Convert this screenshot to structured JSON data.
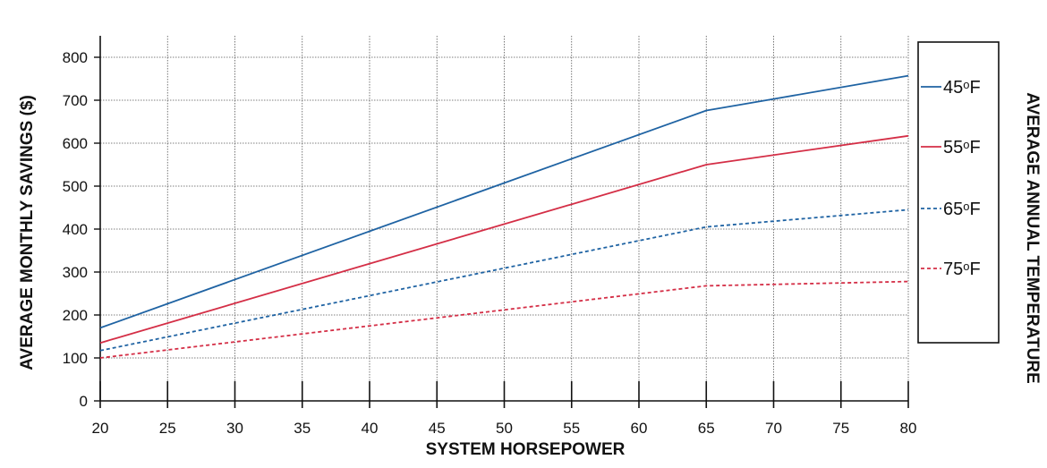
{
  "chart_data": {
    "type": "line",
    "xlabel": "SYSTEM HORSEPOWER",
    "ylabel": "AVERAGE MONTHLY SAVINGS ($)",
    "legend_title": "AVERAGE ANNUAL TEMPERATURE",
    "legend_position": "right",
    "grid": true,
    "xlim": [
      20,
      80
    ],
    "ylim": [
      0,
      850
    ],
    "x_ticks": [
      20,
      25,
      30,
      35,
      40,
      45,
      50,
      55,
      60,
      65,
      70,
      75,
      80
    ],
    "y_ticks": [
      0,
      100,
      200,
      300,
      400,
      500,
      600,
      700,
      800
    ],
    "series": [
      {
        "name": "45",
        "unit": "F",
        "degree": "o",
        "color": "#1f63a3",
        "dashed": false,
        "x": [
          20,
          65,
          70,
          80
        ],
        "y": [
          170,
          676,
          703,
          757
        ]
      },
      {
        "name": "55",
        "unit": "F",
        "degree": "o",
        "color": "#d42e46",
        "dashed": false,
        "x": [
          20,
          65,
          80
        ],
        "y": [
          135,
          550,
          617
        ]
      },
      {
        "name": "65",
        "unit": "F",
        "degree": "o",
        "color": "#1f63a3",
        "dashed": true,
        "x": [
          20,
          65,
          80
        ],
        "y": [
          117,
          405,
          445
        ]
      },
      {
        "name": "75",
        "unit": "F",
        "degree": "o",
        "color": "#d42e46",
        "dashed": true,
        "x": [
          20,
          65,
          80
        ],
        "y": [
          100,
          268,
          278
        ]
      }
    ]
  }
}
